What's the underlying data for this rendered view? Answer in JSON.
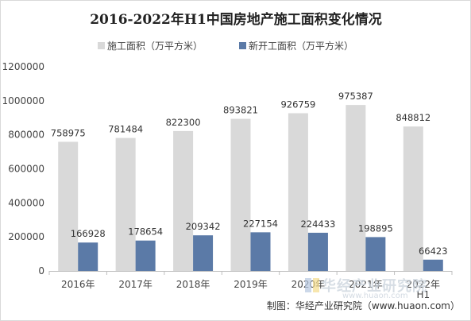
{
  "chart_data": {
    "type": "bar",
    "title": "2016-2022年H1中国房地产施工面积变化情况",
    "categories": [
      "2016年",
      "2017年",
      "2018年",
      "2019年",
      "2020年",
      "2021年",
      "2022年H1"
    ],
    "series": [
      {
        "name": "施工面积（万平方米）",
        "values": [
          758975,
          781484,
          822300,
          893821,
          926759,
          975387,
          848812
        ],
        "color": "#d9d9d9"
      },
      {
        "name": "新开工面积（万平方米）",
        "values": [
          166928,
          178654,
          209342,
          227154,
          224433,
          198895,
          66423
        ],
        "color": "#5b7aa7"
      }
    ],
    "ylim": [
      0,
      1200000
    ],
    "yticks": [
      0,
      200000,
      400000,
      600000,
      800000,
      1000000,
      1200000
    ],
    "legend_position": "top",
    "grid": false
  },
  "source": "制图：华经产业研究院（www.huaon.com）",
  "watermark": {
    "name": "华经产业研究院",
    "url": "www.huaon.com"
  }
}
